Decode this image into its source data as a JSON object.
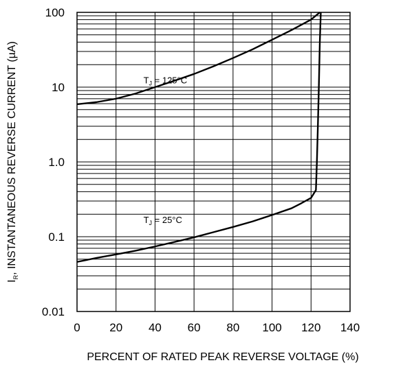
{
  "chart_data": {
    "type": "line",
    "title": "",
    "xlabel": "PERCENT OF RATED PEAK REVERSE VOLTAGE (%)",
    "ylabel": {
      "prefix": "I",
      "sub": "R",
      "rest": ", INSTANTANEOUS REVERSE CURRENT (µA)"
    },
    "xlim": [
      0,
      140
    ],
    "ylim": [
      0.01,
      100
    ],
    "yscale": "log",
    "grid": true,
    "x_ticks": [
      0,
      20,
      40,
      60,
      80,
      100,
      120,
      140
    ],
    "x_tick_labels": [
      "0",
      "20",
      "40",
      "60",
      "80",
      "100",
      "120",
      "140"
    ],
    "y_ticks": [
      100,
      10,
      1,
      0.1,
      0.01
    ],
    "y_tick_labels": [
      "100",
      "10",
      "1.0",
      "0.1",
      "0.01"
    ],
    "series": [
      {
        "label": {
          "prefix": "T",
          "sub": "J",
          "rest": " = 125°C"
        },
        "label_at": [
          33,
          12.5
        ],
        "x": [
          0,
          10,
          20,
          30,
          40,
          50,
          60,
          70,
          80,
          90,
          100,
          110,
          120,
          124.5
        ],
        "y": [
          5.9,
          6.3,
          7.0,
          8.2,
          10.0,
          12.2,
          15.0,
          19.0,
          24.5,
          32,
          43,
          58,
          80,
          100
        ]
      },
      {
        "label": {
          "prefix": "T",
          "sub": "J",
          "rest": " = 25°C"
        },
        "label_at": [
          33,
          0.17
        ],
        "x": [
          0,
          10,
          20,
          30,
          40,
          50,
          60,
          70,
          80,
          90,
          100,
          110,
          115,
          120,
          122.5,
          123,
          123.5,
          124,
          124.5,
          125
        ],
        "y": [
          0.046,
          0.052,
          0.058,
          0.065,
          0.074,
          0.085,
          0.098,
          0.115,
          0.135,
          0.16,
          0.195,
          0.24,
          0.28,
          0.33,
          0.42,
          1.0,
          3.0,
          10,
          40,
          100
        ]
      }
    ]
  }
}
